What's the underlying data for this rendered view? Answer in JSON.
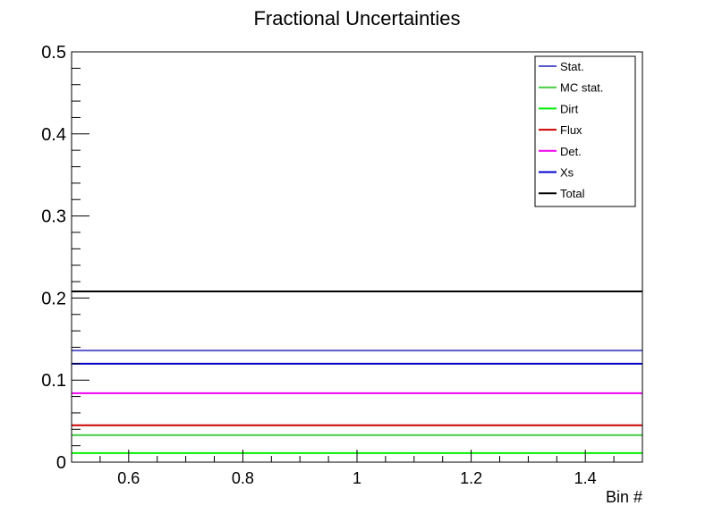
{
  "chart_data": {
    "type": "line",
    "title": "Fractional Uncertainties",
    "xlabel": "Bin #",
    "ylabel": "",
    "xlim": [
      0.5,
      1.5
    ],
    "ylim": [
      0,
      0.5
    ],
    "grid": false,
    "legend_position": "top-right",
    "x_ticks": [
      "0.6",
      "0.8",
      "1",
      "1.2",
      "1.4"
    ],
    "y_ticks": [
      "0",
      "0.1",
      "0.2",
      "0.3",
      "0.4",
      "0.5"
    ],
    "series": [
      {
        "name": "Stat.",
        "color": "#5a5acf",
        "x": [
          0.5,
          1.5
        ],
        "y": [
          0.136,
          0.136
        ]
      },
      {
        "name": "MC stat.",
        "color": "#44cc44",
        "x": [
          0.5,
          1.5
        ],
        "y": [
          0.033,
          0.033
        ]
      },
      {
        "name": "Dirt",
        "color": "#00ee00",
        "x": [
          0.5,
          1.5
        ],
        "y": [
          0.011,
          0.011
        ]
      },
      {
        "name": "Flux",
        "color": "#cc0000",
        "x": [
          0.5,
          1.5
        ],
        "y": [
          0.045,
          0.045
        ]
      },
      {
        "name": "Det.",
        "color": "#ee00ee",
        "x": [
          0.5,
          1.5
        ],
        "y": [
          0.084,
          0.084
        ]
      },
      {
        "name": "Xs",
        "color": "#0000cc",
        "x": [
          0.5,
          1.5
        ],
        "y": [
          0.12,
          0.12
        ]
      },
      {
        "name": "Total",
        "color": "#000000",
        "x": [
          0.5,
          1.5
        ],
        "y": [
          0.208,
          0.208
        ]
      }
    ]
  }
}
